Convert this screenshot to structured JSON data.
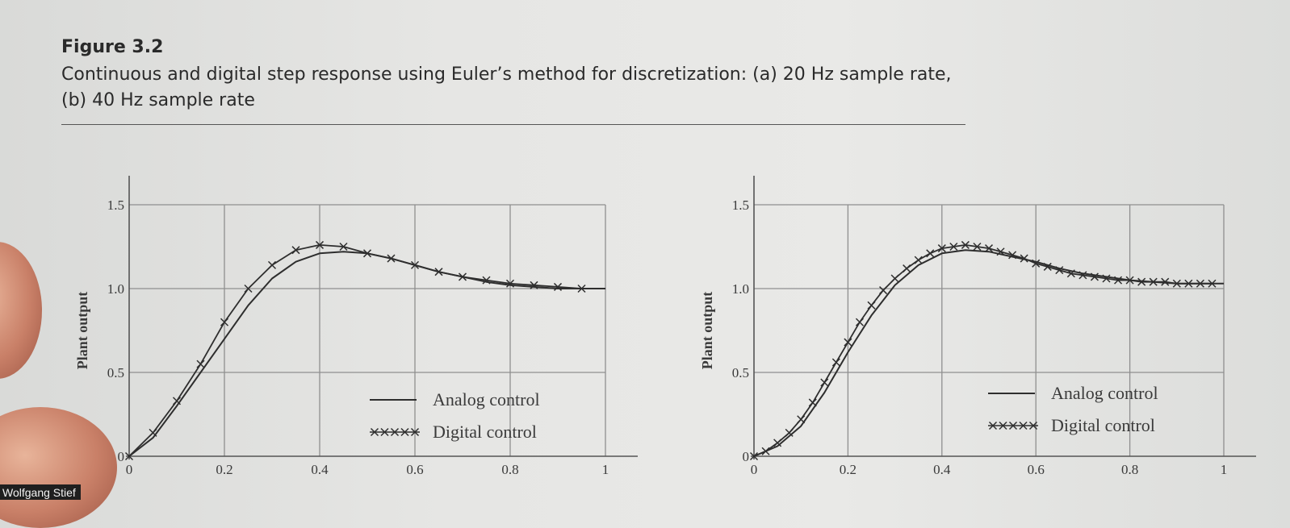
{
  "caption": {
    "label": "Figure 3.2",
    "text": "Continuous and digital step response using Euler’s method for discretization: (a) 20 Hz sample rate, (b) 40 Hz sample rate"
  },
  "credit": "Wolfgang Stief",
  "colors": {
    "curve": "#2e2e2e",
    "grid": "#8f8f8f",
    "paper": "#e6e6e4"
  },
  "chart_data": [
    {
      "type": "line",
      "title": "",
      "xlabel": "",
      "ylabel": "Plant output",
      "xlim": [
        0,
        1
      ],
      "ylim": [
        0,
        1.5
      ],
      "xticks": [
        "0",
        "0.2",
        "0.4",
        "0.6",
        "0.8",
        "1"
      ],
      "yticks": [
        "0",
        "0.5",
        "1.0",
        "1.5"
      ],
      "grid": true,
      "legend": "bottom-right",
      "series": [
        {
          "name": "Analog control",
          "x": [
            0,
            0.05,
            0.1,
            0.15,
            0.2,
            0.25,
            0.3,
            0.35,
            0.4,
            0.45,
            0.5,
            0.55,
            0.6,
            0.65,
            0.7,
            0.75,
            0.8,
            0.85,
            0.9,
            0.95,
            1
          ],
          "y": [
            0,
            0.11,
            0.3,
            0.5,
            0.7,
            0.9,
            1.06,
            1.16,
            1.21,
            1.22,
            1.21,
            1.18,
            1.14,
            1.1,
            1.07,
            1.04,
            1.02,
            1.01,
            1.0,
            1.0,
            1.0
          ]
        },
        {
          "name": "Digital control",
          "x": [
            0,
            0.05,
            0.1,
            0.15,
            0.2,
            0.25,
            0.3,
            0.35,
            0.4,
            0.45,
            0.5,
            0.55,
            0.6,
            0.65,
            0.7,
            0.75,
            0.8,
            0.85,
            0.9,
            0.95
          ],
          "y": [
            0,
            0.14,
            0.33,
            0.55,
            0.8,
            1.0,
            1.14,
            1.23,
            1.26,
            1.25,
            1.21,
            1.18,
            1.14,
            1.1,
            1.07,
            1.05,
            1.03,
            1.02,
            1.01,
            1.0
          ]
        }
      ]
    },
    {
      "type": "line",
      "title": "",
      "xlabel": "",
      "ylabel": "Plant output",
      "xlim": [
        0,
        1
      ],
      "ylim": [
        0,
        1.5
      ],
      "xticks": [
        "0",
        "0.2",
        "0.4",
        "0.6",
        "0.8",
        "1"
      ],
      "yticks": [
        "0",
        "0.5",
        "1.0",
        "1.5"
      ],
      "grid": true,
      "legend": "bottom-right",
      "series": [
        {
          "name": "Analog control",
          "x": [
            0,
            0.05,
            0.1,
            0.15,
            0.2,
            0.25,
            0.3,
            0.35,
            0.4,
            0.45,
            0.5,
            0.55,
            0.6,
            0.65,
            0.7,
            0.75,
            0.8,
            0.85,
            0.9,
            0.95,
            1
          ],
          "y": [
            0,
            0.06,
            0.18,
            0.38,
            0.62,
            0.84,
            1.02,
            1.14,
            1.21,
            1.23,
            1.22,
            1.19,
            1.16,
            1.12,
            1.09,
            1.07,
            1.05,
            1.04,
            1.03,
            1.03,
            1.03
          ]
        },
        {
          "name": "Digital control",
          "x": [
            0,
            0.025,
            0.05,
            0.075,
            0.1,
            0.125,
            0.15,
            0.175,
            0.2,
            0.225,
            0.25,
            0.275,
            0.3,
            0.325,
            0.35,
            0.375,
            0.4,
            0.425,
            0.45,
            0.475,
            0.5,
            0.525,
            0.55,
            0.575,
            0.6,
            0.625,
            0.65,
            0.675,
            0.7,
            0.725,
            0.75,
            0.775,
            0.8,
            0.825,
            0.85,
            0.875,
            0.9,
            0.925,
            0.95,
            0.975
          ],
          "y": [
            0,
            0.03,
            0.08,
            0.14,
            0.22,
            0.32,
            0.44,
            0.56,
            0.68,
            0.8,
            0.9,
            0.99,
            1.06,
            1.12,
            1.17,
            1.21,
            1.24,
            1.25,
            1.26,
            1.25,
            1.24,
            1.22,
            1.2,
            1.18,
            1.15,
            1.13,
            1.11,
            1.09,
            1.08,
            1.07,
            1.06,
            1.05,
            1.05,
            1.04,
            1.04,
            1.04,
            1.03,
            1.03,
            1.03,
            1.03
          ]
        }
      ]
    }
  ]
}
